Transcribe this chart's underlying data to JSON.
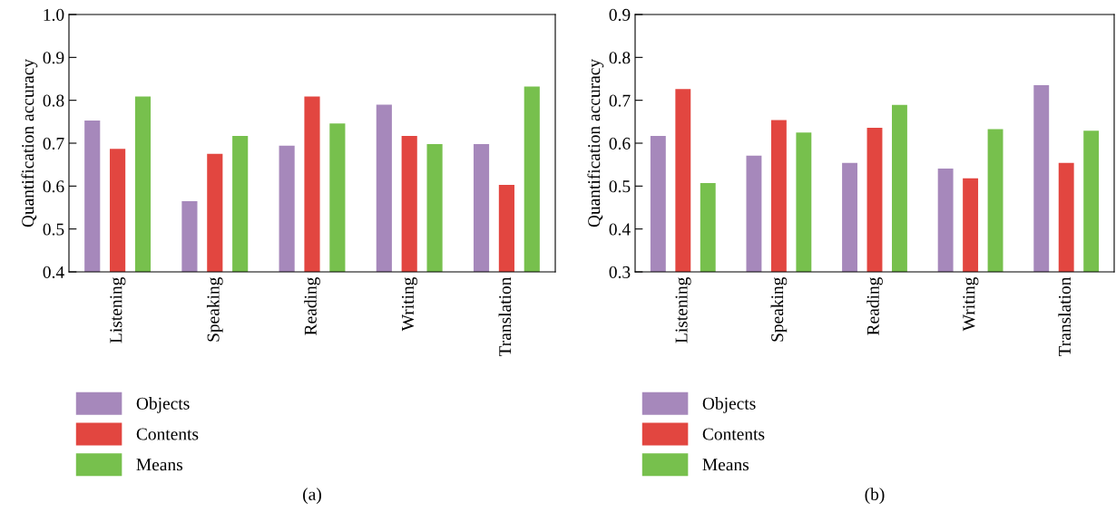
{
  "chart_data": [
    {
      "type": "bar",
      "ylabel": "Quantification accuracy",
      "categories": [
        "Listening",
        "Speaking",
        "Reading",
        "Writing",
        "Translation"
      ],
      "ylim": [
        0.4,
        1.0
      ],
      "yticks": [
        0.4,
        0.5,
        0.6,
        0.7,
        0.8,
        0.9,
        {
          "value": 1,
          "label": "1.0"
        }
      ],
      "grid": false,
      "legend": "bottom left",
      "annotations": [
        "(a)"
      ],
      "series": [
        {
          "name": "Objects",
          "color": "#a688bb",
          "values": [
            0.753,
            0.565,
            0.694,
            0.79,
            0.698
          ]
        },
        {
          "name": "Contents",
          "color": "#e24640",
          "values": [
            0.687,
            0.675,
            0.809,
            0.717,
            0.603
          ]
        },
        {
          "name": "Means",
          "color": "#77c04d",
          "values": [
            0.809,
            0.717,
            0.746,
            0.698,
            0.832
          ]
        }
      ]
    },
    {
      "type": "bar",
      "ylabel": "Quantification accuracy",
      "categories": [
        "Listening",
        "Speaking",
        "Reading",
        "Writing",
        "Translation"
      ],
      "ylim": [
        0.3,
        0.9
      ],
      "yticks": [
        0.3,
        0.4,
        0.5,
        0.6,
        0.7,
        0.8,
        0.9
      ],
      "grid": false,
      "legend": "bottom left",
      "annotations": [
        "(b)"
      ],
      "series": [
        {
          "name": "Objects",
          "color": "#a688bb",
          "values": [
            0.617,
            0.571,
            0.554,
            0.541,
            0.735
          ]
        },
        {
          "name": "Contents",
          "color": "#e24640",
          "values": [
            0.726,
            0.654,
            0.636,
            0.518,
            0.554
          ]
        },
        {
          "name": "Means",
          "color": "#77c04d",
          "values": [
            0.507,
            0.625,
            0.689,
            0.633,
            0.629
          ]
        }
      ]
    }
  ]
}
